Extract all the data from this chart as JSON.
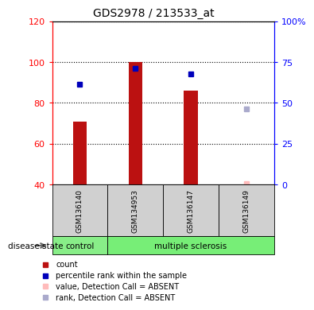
{
  "title": "GDS2978 / 213533_at",
  "samples": [
    "GSM136140",
    "GSM134953",
    "GSM136147",
    "GSM136149"
  ],
  "groups": [
    "control",
    "multiple sclerosis",
    "multiple sclerosis",
    "multiple sclerosis"
  ],
  "bar_values": [
    71,
    100,
    86,
    40
  ],
  "bar_base": 40,
  "dot_values_left_axis": [
    89,
    97,
    94,
    null
  ],
  "absent_rank_left_axis": [
    null,
    null,
    null,
    77
  ],
  "absent_value_left_axis": [
    null,
    null,
    null,
    40.5
  ],
  "ylim_left": [
    40,
    120
  ],
  "ylim_right": [
    0,
    100
  ],
  "yticks_left": [
    40,
    60,
    80,
    100,
    120
  ],
  "yticks_right": [
    0,
    25,
    50,
    75,
    100
  ],
  "ytick_labels_right": [
    "0",
    "25",
    "50",
    "75",
    "100%"
  ],
  "bar_color": "#bb1111",
  "dot_color": "#0000bb",
  "absent_value_color": "#ffbbbb",
  "absent_rank_color": "#aaaacc",
  "group_colors": {
    "control": "#88ee88",
    "multiple sclerosis": "#77ee77"
  },
  "legend_items": [
    {
      "label": "count",
      "color": "#bb1111"
    },
    {
      "label": "percentile rank within the sample",
      "color": "#0000bb"
    },
    {
      "label": "value, Detection Call = ABSENT",
      "color": "#ffbbbb"
    },
    {
      "label": "rank, Detection Call = ABSENT",
      "color": "#aaaacc"
    }
  ],
  "disease_state_label": "disease state",
  "bar_width": 0.25,
  "sample_label_gray": "#d0d0d0"
}
